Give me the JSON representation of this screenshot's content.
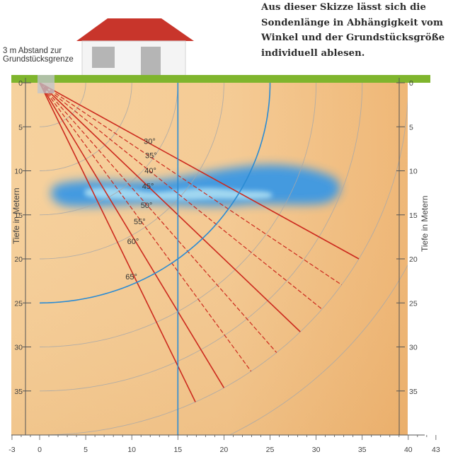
{
  "caption": [
    "Aus dieser Skizze lässt sich die",
    "Sondenlänge in Abhängigkeit vom",
    "Winkel und der Grundstücksgröße",
    "individuell ablesen."
  ],
  "boundary_note": [
    "3 m Abstand zur",
    "Grundstücksgrenze"
  ],
  "axis_label_left": "Tiefe in Metern",
  "axis_label_right": "Tiefe in Metern",
  "x_ticks": [
    "-3",
    "0",
    "5",
    "10",
    "15",
    "20",
    "25",
    "30",
    "35",
    "40",
    "43"
  ],
  "y_ticks": [
    "0",
    "5",
    "10",
    "15",
    "20",
    "25",
    "30",
    "35"
  ],
  "angle_labels": [
    "30°",
    "35°",
    "40°",
    "45°",
    "50°",
    "55°",
    "60°",
    "65°"
  ],
  "chart_data": {
    "type": "diagram",
    "x_range": [
      -3,
      43
    ],
    "y_range": [
      0,
      40
    ],
    "angles_deg": [
      30,
      35,
      40,
      45,
      50,
      55,
      60,
      65
    ],
    "solid_angles_deg": [
      30,
      45,
      60,
      65
    ],
    "probe_length_m": 40,
    "arc_radii_m": [
      5,
      10,
      15,
      20,
      25,
      30,
      35,
      40,
      45
    ],
    "boundary_line_x_m": 15,
    "boundary_arc_radius_m": 25,
    "colors": {
      "ground": "#7fb52d",
      "soil": "#f2c690",
      "probe_lines": "#cc2a1e",
      "boundary": "#2a8bd4",
      "aquifer": "#3a9be6",
      "roof": "#c8352b"
    }
  }
}
